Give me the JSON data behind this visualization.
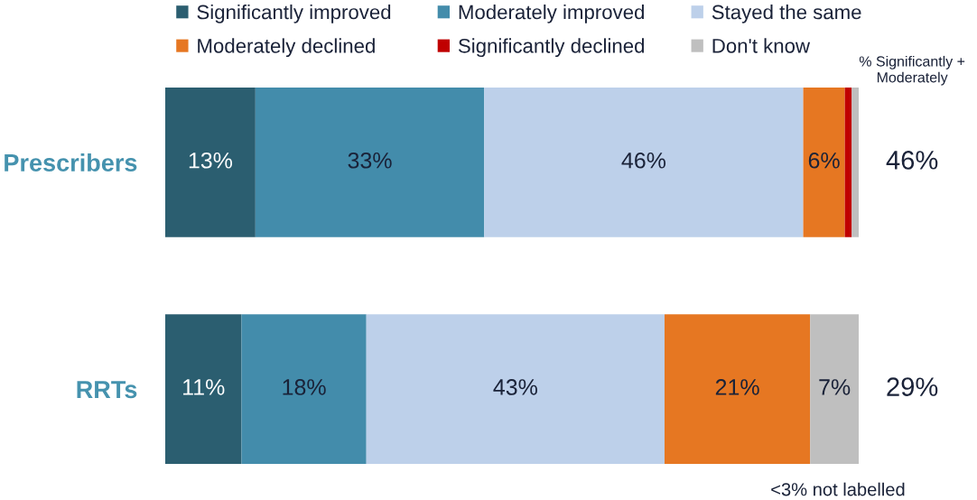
{
  "chart_data": {
    "type": "bar",
    "orientation": "horizontal",
    "stacked": true,
    "categories": [
      "Prescribers",
      "RRTs"
    ],
    "series": [
      {
        "name": "Significantly improved",
        "color": "#2b5e70",
        "values": [
          13,
          11
        ],
        "value_labels": [
          "13%",
          "11%"
        ]
      },
      {
        "name": "Moderately improved",
        "color": "#438cab",
        "values": [
          33,
          18
        ],
        "value_labels": [
          "33%",
          "18%"
        ]
      },
      {
        "name": "Stayed the same",
        "color": "#bdd0ea",
        "values": [
          46,
          43
        ],
        "value_labels": [
          "46%",
          "43%"
        ]
      },
      {
        "name": "Moderately declined",
        "color": "#e67722",
        "values": [
          6,
          21
        ],
        "value_labels": [
          "6%",
          "21%"
        ]
      },
      {
        "name": "Significantly declined",
        "color": "#c00000",
        "values": [
          1,
          null
        ],
        "value_labels": [
          null,
          null
        ]
      },
      {
        "name": "Don't know",
        "color": "#bfbfbf",
        "values": [
          1,
          7
        ],
        "value_labels": [
          null,
          "7%"
        ]
      }
    ],
    "legend": "top",
    "tick_labels": "y",
    "annotations": [
      "% Significantly +\nModerately",
      "46%",
      "29%",
      "<3% not labelled"
    ]
  }
}
